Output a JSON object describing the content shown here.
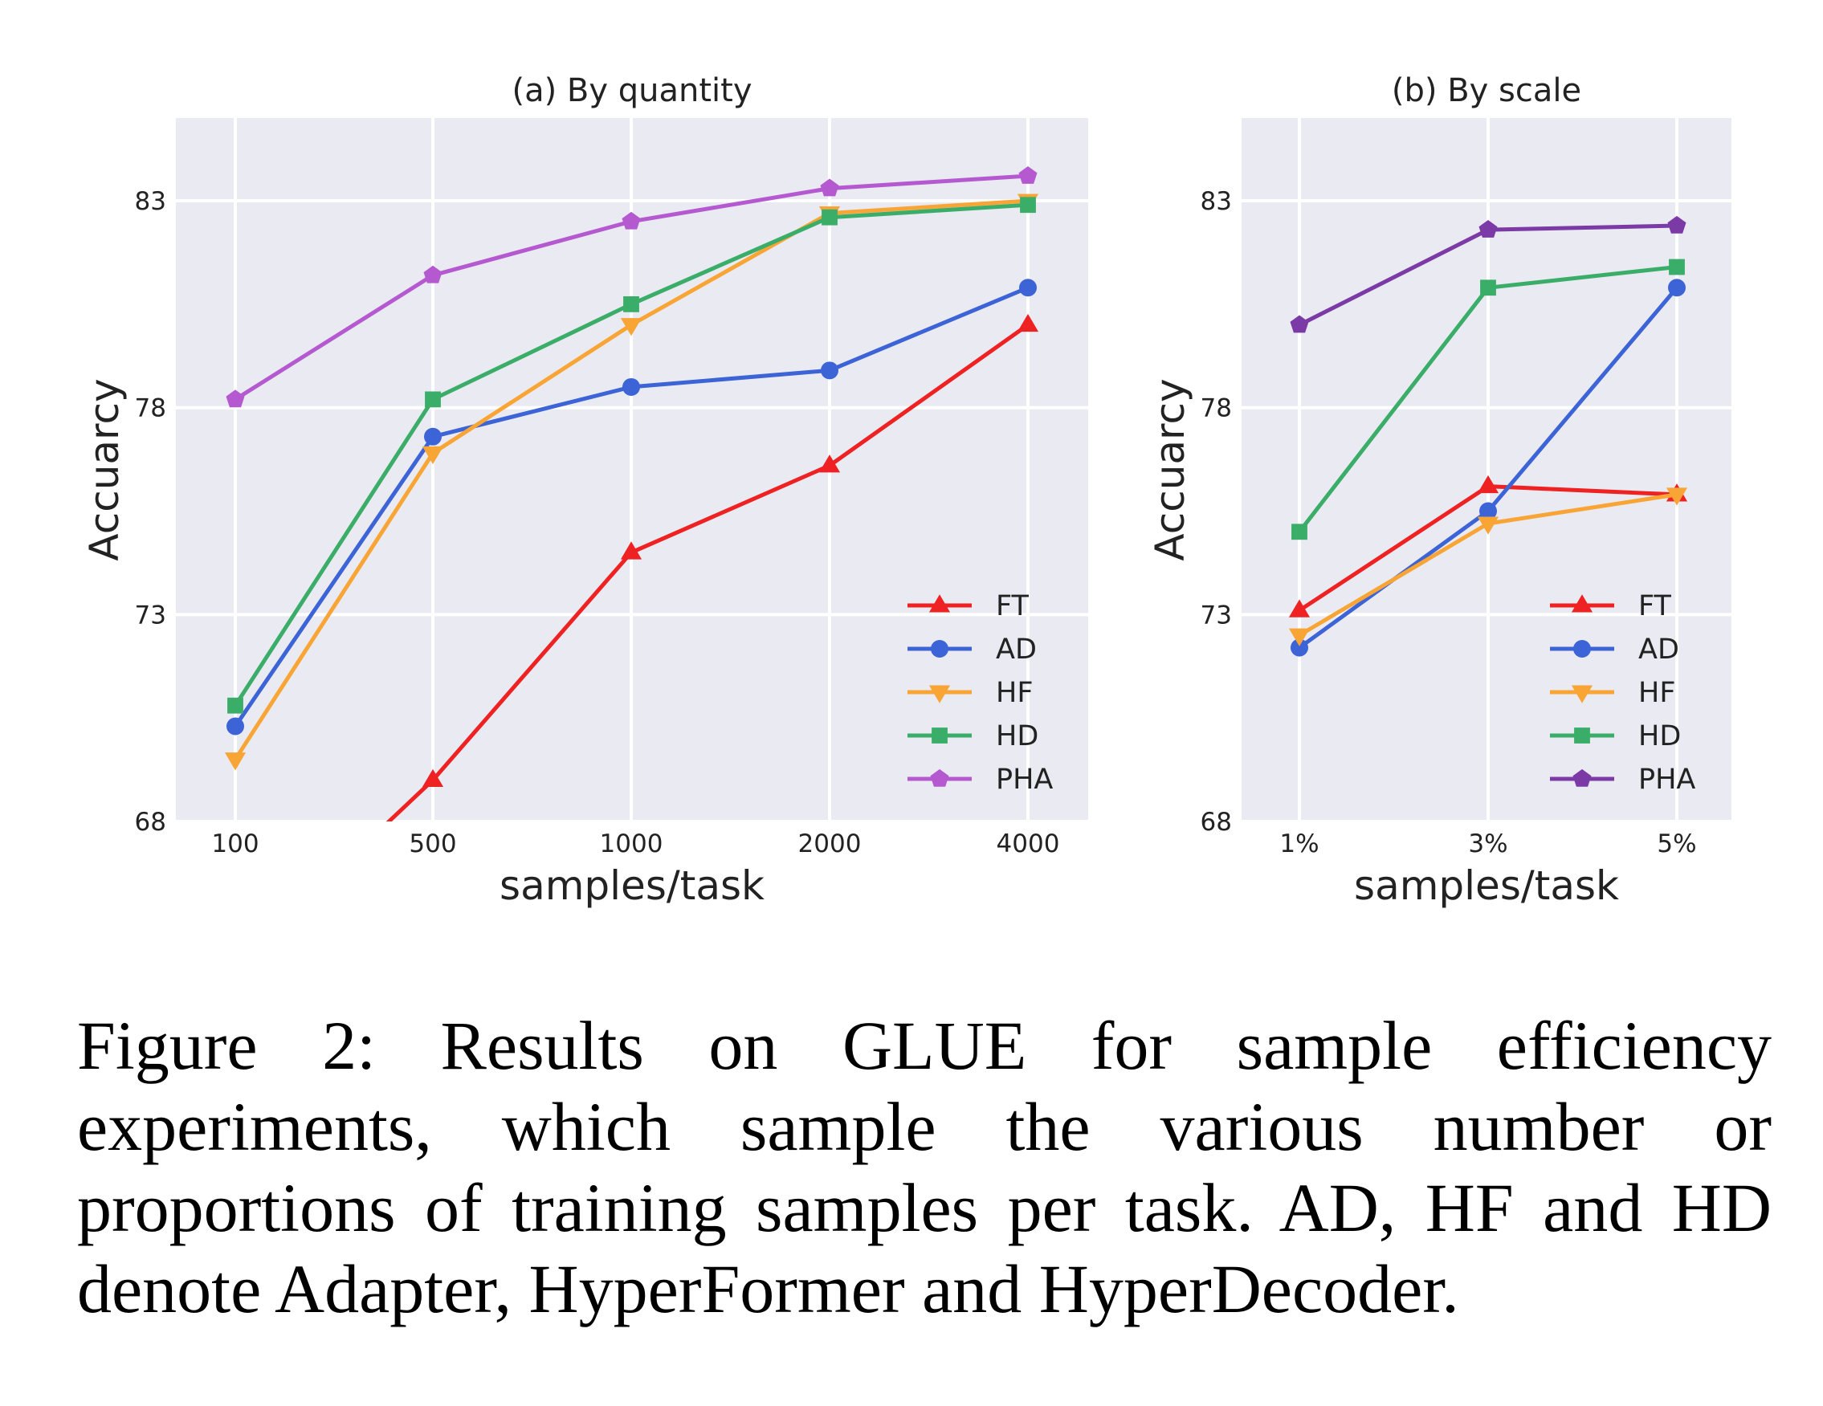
{
  "chart_data": [
    {
      "type": "line",
      "title": "(a) By quantity",
      "xlabel": "samples/task",
      "ylabel": "Accuarcy",
      "categories": [
        "100",
        "500",
        "1000",
        "2000",
        "4000"
      ],
      "ylim": [
        68,
        85
      ],
      "yticks": [
        "68",
        "73",
        "78",
        "83"
      ],
      "grid": true,
      "legend_position": "lower-right",
      "series": [
        {
          "name": "FT",
          "color": "#ee2222",
          "marker": "triangle-up",
          "values": [
            64.5,
            69.0,
            74.5,
            76.6,
            80.0
          ]
        },
        {
          "name": "AD",
          "color": "#3d64d6",
          "marker": "circle",
          "values": [
            70.3,
            77.3,
            78.5,
            78.9,
            80.9
          ]
        },
        {
          "name": "HF",
          "color": "#f8a535",
          "marker": "triangle-down",
          "values": [
            69.5,
            76.9,
            80.0,
            82.7,
            83.0
          ]
        },
        {
          "name": "HD",
          "color": "#3aad68",
          "marker": "square",
          "values": [
            70.8,
            78.2,
            80.5,
            82.6,
            82.9
          ]
        },
        {
          "name": "PHA",
          "color": "#b559d1",
          "marker": "pentagon",
          "values": [
            78.2,
            81.2,
            82.5,
            83.3,
            83.6
          ]
        }
      ]
    },
    {
      "type": "line",
      "title": "(b) By scale",
      "xlabel": "samples/task",
      "ylabel": "Accuarcy",
      "categories": [
        "1%",
        "3%",
        "5%"
      ],
      "ylim": [
        68,
        85
      ],
      "yticks": [
        "68",
        "73",
        "78",
        "83"
      ],
      "grid": true,
      "legend_position": "lower-right",
      "series": [
        {
          "name": "FT",
          "color": "#ee2222",
          "marker": "triangle-up",
          "values": [
            73.1,
            76.1,
            75.9
          ]
        },
        {
          "name": "AD",
          "color": "#3d64d6",
          "marker": "circle",
          "values": [
            72.2,
            75.5,
            80.9
          ]
        },
        {
          "name": "HF",
          "color": "#f8a535",
          "marker": "triangle-down",
          "values": [
            72.5,
            75.2,
            75.9
          ]
        },
        {
          "name": "HD",
          "color": "#3aad68",
          "marker": "square",
          "values": [
            75.0,
            80.9,
            81.4
          ]
        },
        {
          "name": "PHA",
          "color": "#7b3aa6",
          "marker": "pentagon",
          "values": [
            80.0,
            82.3,
            82.4
          ]
        }
      ]
    }
  ],
  "caption": "Figure 2: Results on GLUE for sample efficiency experiments, which sample the various number or proportions of training samples per task. AD, HF and HD denote Adapter, HyperFormer and HyperDecoder."
}
